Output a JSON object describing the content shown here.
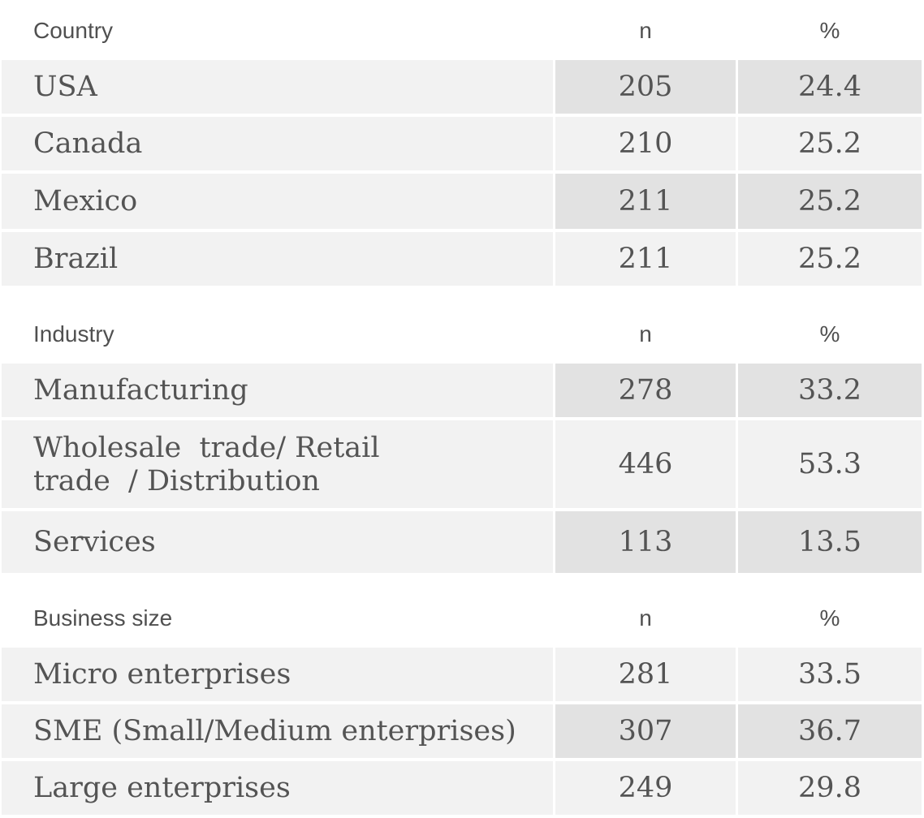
{
  "sections": [
    {
      "header": {
        "label": "Country",
        "n": "n",
        "pct": "%"
      },
      "rows": [
        {
          "label": "USA",
          "n": "205",
          "pct": "24.4"
        },
        {
          "label": "Canada",
          "n": "210",
          "pct": "25.2"
        },
        {
          "label": "Mexico",
          "n": "211",
          "pct": "25.2"
        },
        {
          "label": "Brazil",
          "n": "211",
          "pct": "25.2"
        }
      ]
    },
    {
      "header": {
        "label": "Industry",
        "n": "n",
        "pct": "%"
      },
      "rows": [
        {
          "label": "Manufacturing",
          "n": "278",
          "pct": "33.2"
        },
        {
          "label": "Wholesale  trade/ Retail trade  / Distribution",
          "n": "446",
          "pct": "53.3"
        },
        {
          "label": "Services",
          "n": "113",
          "pct": "13.5"
        }
      ]
    },
    {
      "header": {
        "label": "Business size",
        "n": "n",
        "pct": "%"
      },
      "rows": [
        {
          "label": "Micro enterprises",
          "n": "281",
          "pct": "33.5"
        },
        {
          "label": "SME (Small/Medium enterprises)",
          "n": "307",
          "pct": "36.7"
        },
        {
          "label": "Large enterprises",
          "n": "249",
          "pct": "29.8"
        }
      ]
    }
  ],
  "colors": {
    "row_background": "#f2f2f2",
    "highlight_background": "#e2e2e2",
    "text": "#505050"
  }
}
